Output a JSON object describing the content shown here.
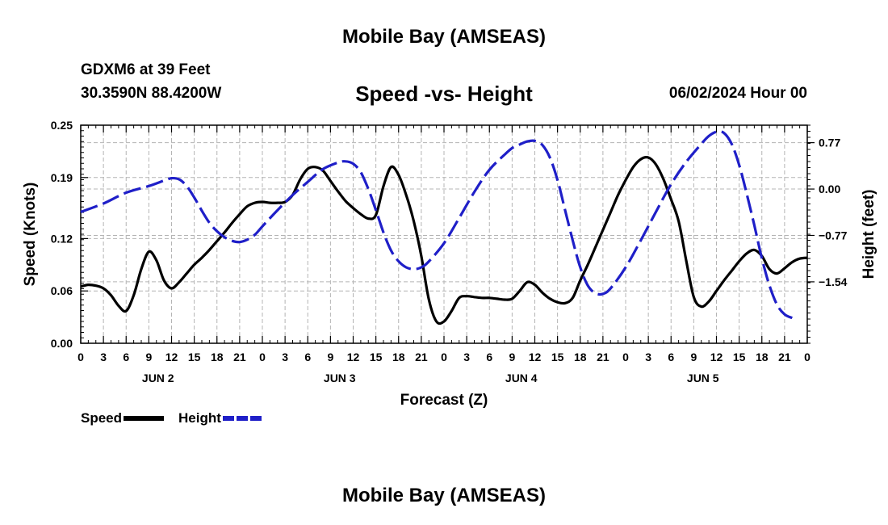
{
  "header": {
    "title": "Mobile Bay (AMSEAS)",
    "station": "GDXM6 at 39 Feet",
    "coords": "30.3590N  88.4200W",
    "subtitle": "Speed -vs- Height",
    "datetime": "06/02/2024 Hour 00"
  },
  "footer": {
    "title": "Mobile Bay (AMSEAS)"
  },
  "legend": {
    "speed_label": "Speed",
    "height_label": "Height"
  },
  "chart_data": {
    "type": "line",
    "xlabel": "Forecast (Z)",
    "ylabel_left": "Speed (Knots)",
    "ylabel_right": "Height (feet)",
    "x_range_hours": [
      0,
      96
    ],
    "x_tick_labels": [
      "0",
      "3",
      "6",
      "9",
      "12",
      "15",
      "18",
      "21",
      "0",
      "3",
      "6",
      "9",
      "12",
      "15",
      "18",
      "21",
      "0",
      "3",
      "6",
      "9",
      "12",
      "15",
      "18",
      "21",
      "0",
      "3",
      "6",
      "9",
      "12",
      "15",
      "18",
      "21",
      "0"
    ],
    "day_labels": [
      {
        "label": "JUN 2",
        "hour": 10
      },
      {
        "label": "JUN 3",
        "hour": 34
      },
      {
        "label": "JUN 4",
        "hour": 58
      },
      {
        "label": "JUN 5",
        "hour": 82
      }
    ],
    "left_axis": {
      "range": [
        0,
        0.25
      ],
      "ticks": [
        0.0,
        0.06,
        0.12,
        0.19,
        0.25
      ],
      "tick_labels": [
        "0.00",
        "0.06",
        "0.12",
        "0.19",
        "0.25"
      ]
    },
    "right_axis": {
      "range": [
        -2.56,
        1.06
      ],
      "ticks": [
        -1.54,
        -0.77,
        0.0,
        0.77
      ],
      "tick_labels": [
        "−1.54",
        "−0.77",
        "0.00",
        "0.77"
      ]
    },
    "grid": true,
    "legend_position": "bottom-left",
    "series": [
      {
        "name": "Speed",
        "color": "#000000",
        "axis": "left",
        "style": "solid",
        "points": [
          [
            0,
            0.065
          ],
          [
            1,
            0.067
          ],
          [
            2,
            0.066
          ],
          [
            3,
            0.063
          ],
          [
            4,
            0.055
          ],
          [
            5,
            0.043
          ],
          [
            6,
            0.037
          ],
          [
            7,
            0.055
          ],
          [
            8,
            0.085
          ],
          [
            9,
            0.105
          ],
          [
            10,
            0.095
          ],
          [
            11,
            0.072
          ],
          [
            12,
            0.063
          ],
          [
            13,
            0.07
          ],
          [
            14,
            0.08
          ],
          [
            15,
            0.09
          ],
          [
            16,
            0.098
          ],
          [
            17,
            0.107
          ],
          [
            18,
            0.117
          ],
          [
            19,
            0.127
          ],
          [
            20,
            0.138
          ],
          [
            21,
            0.148
          ],
          [
            22,
            0.157
          ],
          [
            23,
            0.161
          ],
          [
            24,
            0.162
          ],
          [
            25,
            0.161
          ],
          [
            26,
            0.161
          ],
          [
            27,
            0.162
          ],
          [
            28,
            0.17
          ],
          [
            29,
            0.188
          ],
          [
            30,
            0.2
          ],
          [
            31,
            0.202
          ],
          [
            32,
            0.198
          ],
          [
            33,
            0.186
          ],
          [
            34,
            0.174
          ],
          [
            35,
            0.163
          ],
          [
            36,
            0.155
          ],
          [
            37,
            0.148
          ],
          [
            38,
            0.143
          ],
          [
            39,
            0.147
          ],
          [
            40,
            0.18
          ],
          [
            41,
            0.202
          ],
          [
            42,
            0.193
          ],
          [
            43,
            0.17
          ],
          [
            44,
            0.14
          ],
          [
            45,
            0.1
          ],
          [
            46,
            0.05
          ],
          [
            47,
            0.025
          ],
          [
            48,
            0.025
          ],
          [
            49,
            0.037
          ],
          [
            50,
            0.052
          ],
          [
            51,
            0.054
          ],
          [
            52,
            0.053
          ],
          [
            53,
            0.052
          ],
          [
            54,
            0.052
          ],
          [
            55,
            0.051
          ],
          [
            56,
            0.05
          ],
          [
            57,
            0.051
          ],
          [
            58,
            0.06
          ],
          [
            59,
            0.07
          ],
          [
            60,
            0.067
          ],
          [
            61,
            0.058
          ],
          [
            62,
            0.051
          ],
          [
            63,
            0.047
          ],
          [
            64,
            0.046
          ],
          [
            65,
            0.052
          ],
          [
            66,
            0.072
          ],
          [
            67,
            0.09
          ],
          [
            68,
            0.11
          ],
          [
            69,
            0.13
          ],
          [
            70,
            0.15
          ],
          [
            71,
            0.17
          ],
          [
            72,
            0.187
          ],
          [
            73,
            0.202
          ],
          [
            74,
            0.211
          ],
          [
            75,
            0.213
          ],
          [
            76,
            0.205
          ],
          [
            77,
            0.188
          ],
          [
            78,
            0.165
          ],
          [
            79,
            0.14
          ],
          [
            80,
            0.095
          ],
          [
            81,
            0.053
          ],
          [
            82,
            0.042
          ],
          [
            83,
            0.048
          ],
          [
            84,
            0.06
          ],
          [
            85,
            0.072
          ],
          [
            86,
            0.083
          ],
          [
            87,
            0.094
          ],
          [
            88,
            0.103
          ],
          [
            89,
            0.107
          ],
          [
            90,
            0.1
          ],
          [
            91,
            0.085
          ],
          [
            92,
            0.08
          ],
          [
            93,
            0.086
          ],
          [
            94,
            0.093
          ],
          [
            95,
            0.097
          ],
          [
            96,
            0.098
          ]
        ]
      },
      {
        "name": "Height",
        "color": "#1f1fc8",
        "axis": "right",
        "style": "dashed",
        "points": [
          [
            0,
            -0.38
          ],
          [
            3,
            -0.24
          ],
          [
            6,
            -0.06
          ],
          [
            9,
            0.05
          ],
          [
            11,
            0.14
          ],
          [
            12,
            0.18
          ],
          [
            13,
            0.16
          ],
          [
            14,
            0.05
          ],
          [
            15,
            -0.14
          ],
          [
            16,
            -0.36
          ],
          [
            17,
            -0.56
          ],
          [
            18,
            -0.7
          ],
          [
            19,
            -0.8
          ],
          [
            20,
            -0.86
          ],
          [
            21,
            -0.88
          ],
          [
            22,
            -0.84
          ],
          [
            23,
            -0.76
          ],
          [
            24,
            -0.62
          ],
          [
            26,
            -0.35
          ],
          [
            28,
            -0.1
          ],
          [
            30,
            0.12
          ],
          [
            32,
            0.33
          ],
          [
            34,
            0.44
          ],
          [
            35,
            0.46
          ],
          [
            36,
            0.42
          ],
          [
            37,
            0.28
          ],
          [
            38,
            0.0
          ],
          [
            39,
            -0.35
          ],
          [
            40,
            -0.72
          ],
          [
            41,
            -1.02
          ],
          [
            42,
            -1.2
          ],
          [
            43,
            -1.3
          ],
          [
            44,
            -1.33
          ],
          [
            45,
            -1.3
          ],
          [
            46,
            -1.2
          ],
          [
            48,
            -0.9
          ],
          [
            50,
            -0.48
          ],
          [
            52,
            -0.05
          ],
          [
            54,
            0.32
          ],
          [
            56,
            0.57
          ],
          [
            57,
            0.68
          ],
          [
            58,
            0.74
          ],
          [
            59,
            0.79
          ],
          [
            60,
            0.8
          ],
          [
            61,
            0.73
          ],
          [
            62,
            0.52
          ],
          [
            63,
            0.15
          ],
          [
            64,
            -0.35
          ],
          [
            65,
            -0.85
          ],
          [
            66,
            -1.3
          ],
          [
            67,
            -1.6
          ],
          [
            68,
            -1.73
          ],
          [
            69,
            -1.74
          ],
          [
            70,
            -1.65
          ],
          [
            72,
            -1.3
          ],
          [
            74,
            -0.85
          ],
          [
            76,
            -0.38
          ],
          [
            78,
            0.08
          ],
          [
            80,
            0.45
          ],
          [
            82,
            0.75
          ],
          [
            83,
            0.88
          ],
          [
            84,
            0.95
          ],
          [
            85,
            0.93
          ],
          [
            86,
            0.75
          ],
          [
            87,
            0.4
          ],
          [
            88,
            -0.08
          ],
          [
            89,
            -0.6
          ],
          [
            90,
            -1.15
          ],
          [
            91,
            -1.6
          ],
          [
            92,
            -1.92
          ],
          [
            93,
            -2.08
          ],
          [
            94,
            -2.14
          ]
        ]
      }
    ]
  }
}
